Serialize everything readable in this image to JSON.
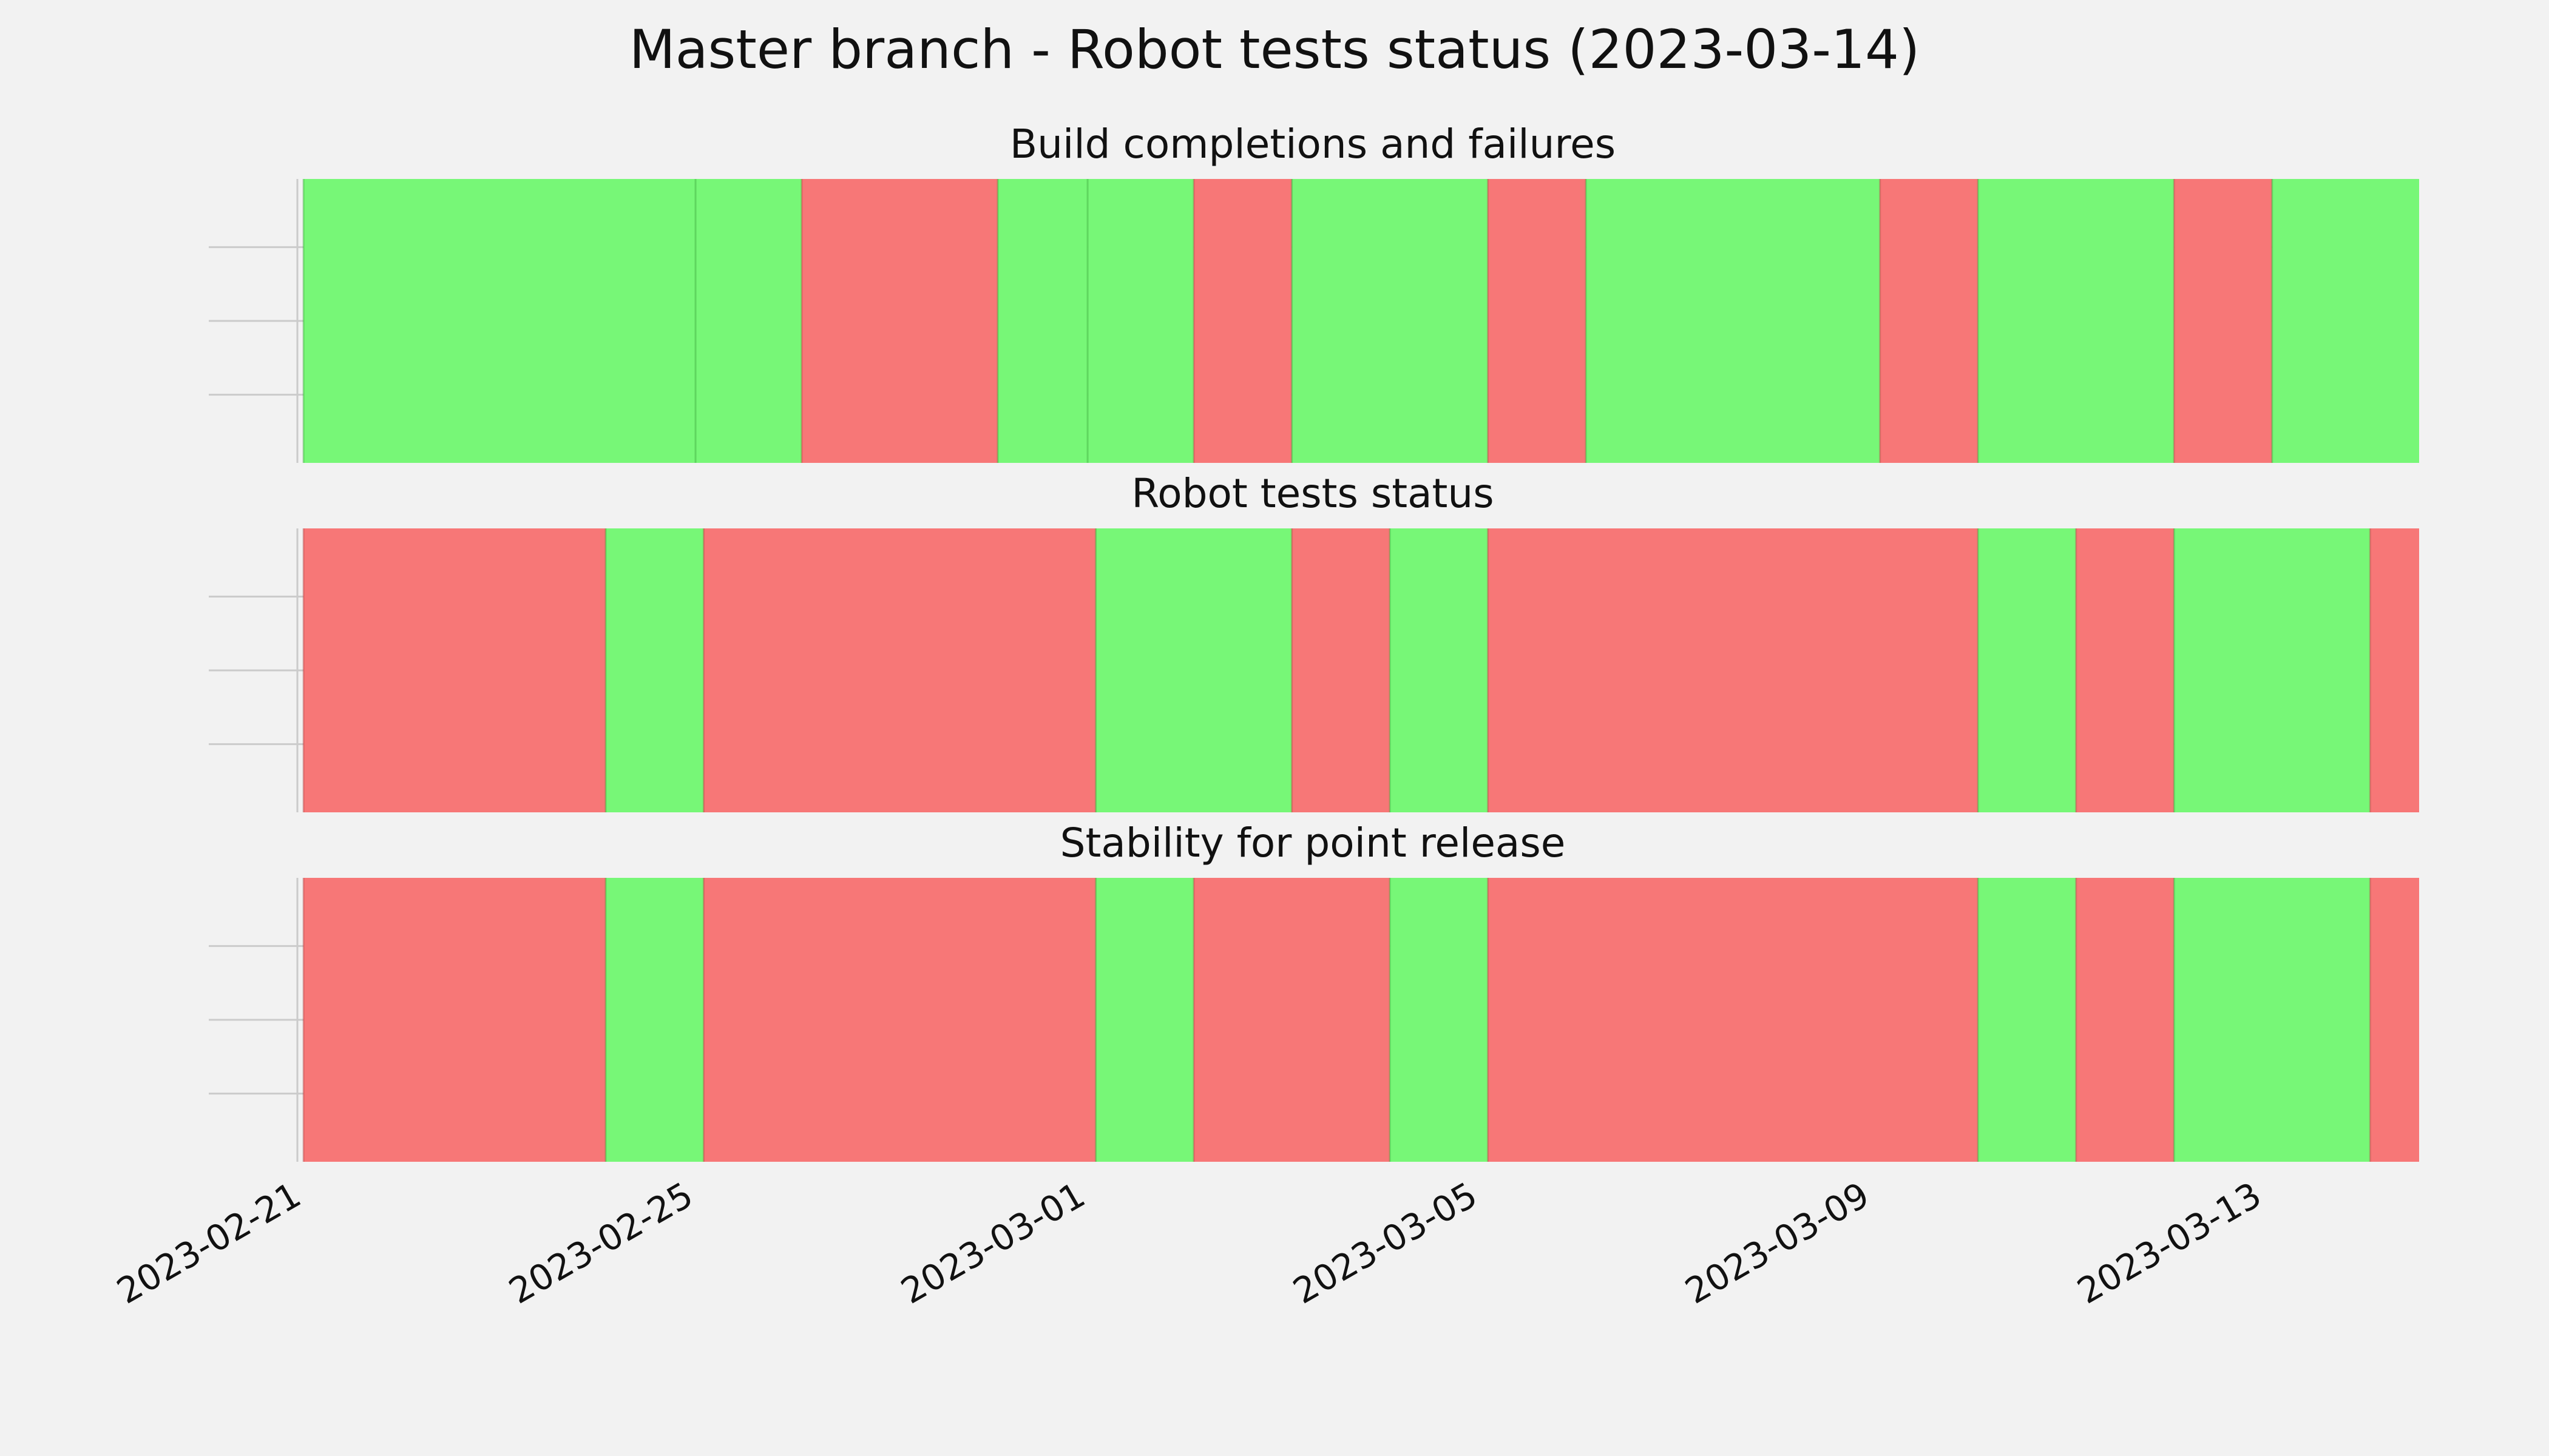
{
  "chart_data": {
    "type": "timeline",
    "title": "Master branch - Robot tests status (2023-03-14)",
    "x_ticks": [
      "2023-02-21",
      "2023-02-25",
      "2023-03-01",
      "2023-03-05",
      "2023-03-09",
      "2023-03-13"
    ],
    "xlim": [
      "2023-02-21",
      "2023-03-14T14:00"
    ],
    "grid": true,
    "colors": {
      "pass": "#77f777",
      "fail": "#f77777",
      "background": "#f2f2f2",
      "grid": "#cbcbcb"
    },
    "panels": [
      {
        "title": "Build completions and failures",
        "segments": [
          {
            "start": "2023-02-21T00:00",
            "end": "2023-02-25T00:00",
            "status": "pass"
          },
          {
            "start": "2023-02-25T00:00",
            "end": "2023-02-26T02:00",
            "status": "pass"
          },
          {
            "start": "2023-02-26T02:00",
            "end": "2023-02-28T02:00",
            "status": "fail"
          },
          {
            "start": "2023-02-28T02:00",
            "end": "2023-03-01T00:00",
            "status": "pass"
          },
          {
            "start": "2023-03-01T00:00",
            "end": "2023-03-02T02:00",
            "status": "pass"
          },
          {
            "start": "2023-03-02T02:00",
            "end": "2023-03-03T02:00",
            "status": "fail"
          },
          {
            "start": "2023-03-03T02:00",
            "end": "2023-03-05T02:00",
            "status": "pass"
          },
          {
            "start": "2023-03-05T02:00",
            "end": "2023-03-06T02:00",
            "status": "fail"
          },
          {
            "start": "2023-03-06T02:00",
            "end": "2023-03-09T02:00",
            "status": "pass"
          },
          {
            "start": "2023-03-09T02:00",
            "end": "2023-03-10T02:00",
            "status": "fail"
          },
          {
            "start": "2023-03-10T02:00",
            "end": "2023-03-12T02:00",
            "status": "pass"
          },
          {
            "start": "2023-03-12T02:00",
            "end": "2023-03-13T02:00",
            "status": "fail"
          },
          {
            "start": "2023-03-13T02:00",
            "end": "2023-03-14T14:00",
            "status": "pass"
          }
        ]
      },
      {
        "title": "Robot tests status",
        "segments": [
          {
            "start": "2023-02-21T00:00",
            "end": "2023-02-24T02:00",
            "status": "fail"
          },
          {
            "start": "2023-02-24T02:00",
            "end": "2023-02-25T02:00",
            "status": "pass"
          },
          {
            "start": "2023-02-25T02:00",
            "end": "2023-03-01T02:00",
            "status": "fail"
          },
          {
            "start": "2023-03-01T02:00",
            "end": "2023-03-03T02:00",
            "status": "pass"
          },
          {
            "start": "2023-03-03T02:00",
            "end": "2023-03-04T02:00",
            "status": "fail"
          },
          {
            "start": "2023-03-04T02:00",
            "end": "2023-03-05T02:00",
            "status": "pass"
          },
          {
            "start": "2023-03-05T02:00",
            "end": "2023-03-10T02:00",
            "status": "fail"
          },
          {
            "start": "2023-03-10T02:00",
            "end": "2023-03-11T02:00",
            "status": "pass"
          },
          {
            "start": "2023-03-11T02:00",
            "end": "2023-03-12T02:00",
            "status": "fail"
          },
          {
            "start": "2023-03-12T02:00",
            "end": "2023-03-14T02:00",
            "status": "pass"
          },
          {
            "start": "2023-03-14T02:00",
            "end": "2023-03-14T14:00",
            "status": "fail"
          }
        ]
      },
      {
        "title": "Stability for point release",
        "segments": [
          {
            "start": "2023-02-21T00:00",
            "end": "2023-02-24T02:00",
            "status": "fail"
          },
          {
            "start": "2023-02-24T02:00",
            "end": "2023-02-25T02:00",
            "status": "pass"
          },
          {
            "start": "2023-02-25T02:00",
            "end": "2023-03-01T02:00",
            "status": "fail"
          },
          {
            "start": "2023-03-01T02:00",
            "end": "2023-03-02T02:00",
            "status": "pass"
          },
          {
            "start": "2023-03-02T02:00",
            "end": "2023-03-04T02:00",
            "status": "fail"
          },
          {
            "start": "2023-03-04T02:00",
            "end": "2023-03-05T02:00",
            "status": "pass"
          },
          {
            "start": "2023-03-05T02:00",
            "end": "2023-03-10T02:00",
            "status": "fail"
          },
          {
            "start": "2023-03-10T02:00",
            "end": "2023-03-11T02:00",
            "status": "pass"
          },
          {
            "start": "2023-03-11T02:00",
            "end": "2023-03-12T02:00",
            "status": "fail"
          },
          {
            "start": "2023-03-12T02:00",
            "end": "2023-03-14T02:00",
            "status": "pass"
          },
          {
            "start": "2023-03-14T02:00",
            "end": "2023-03-14T14:00",
            "status": "fail"
          }
        ]
      }
    ]
  }
}
